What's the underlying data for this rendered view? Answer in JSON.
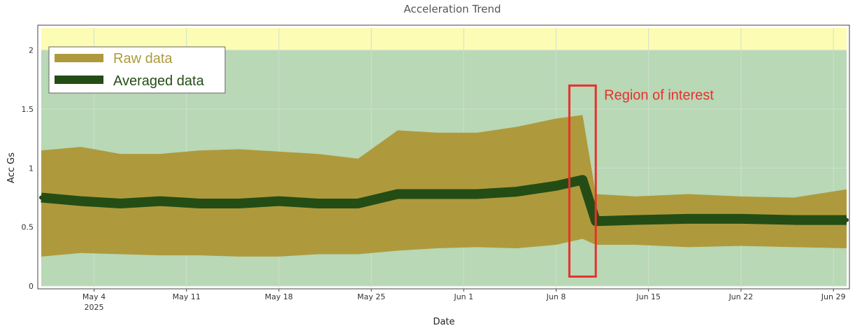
{
  "chart_data": {
    "type": "line",
    "title": "Acceleration Trend",
    "xlabel": "Date",
    "ylabel": "Acc Gs",
    "x_range": [
      "2025-04-30",
      "2025-06-30"
    ],
    "ylim": [
      0,
      2.2
    ],
    "y_ticks": [
      0,
      0.5,
      1,
      1.5,
      2
    ],
    "y_tick_labels": [
      "0",
      "0.5",
      "1",
      "1.5",
      "2"
    ],
    "x_ticks": [
      {
        "date": "2025-05-04",
        "label": "May 4",
        "sublabel": "2025"
      },
      {
        "date": "2025-05-11",
        "label": "May 11",
        "sublabel": ""
      },
      {
        "date": "2025-05-18",
        "label": "May 18",
        "sublabel": ""
      },
      {
        "date": "2025-05-25",
        "label": "May 25",
        "sublabel": ""
      },
      {
        "date": "2025-06-01",
        "label": "Jun 1",
        "sublabel": ""
      },
      {
        "date": "2025-06-08",
        "label": "Jun 8",
        "sublabel": ""
      },
      {
        "date": "2025-06-15",
        "label": "Jun 15",
        "sublabel": ""
      },
      {
        "date": "2025-06-22",
        "label": "Jun 22",
        "sublabel": ""
      },
      {
        "date": "2025-06-29",
        "label": "Jun 29",
        "sublabel": ""
      }
    ],
    "grid": true,
    "zones": [
      {
        "from": 0,
        "to": 2,
        "color": "#b8d8b6"
      },
      {
        "from": 2,
        "to": 2.2,
        "color": "#fdfcb4"
      }
    ],
    "legend_position": "top-left",
    "series": [
      {
        "name": "Raw data",
        "color": "#ae9a3c",
        "style": "band",
        "points": [
          {
            "date": "2025-04-30",
            "low": 0.25,
            "high": 1.15
          },
          {
            "date": "2025-05-03",
            "low": 0.28,
            "high": 1.18
          },
          {
            "date": "2025-05-06",
            "low": 0.27,
            "high": 1.12
          },
          {
            "date": "2025-05-09",
            "low": 0.26,
            "high": 1.12
          },
          {
            "date": "2025-05-12",
            "low": 0.26,
            "high": 1.15
          },
          {
            "date": "2025-05-15",
            "low": 0.25,
            "high": 1.16
          },
          {
            "date": "2025-05-18",
            "low": 0.25,
            "high": 1.14
          },
          {
            "date": "2025-05-21",
            "low": 0.27,
            "high": 1.12
          },
          {
            "date": "2025-05-24",
            "low": 0.27,
            "high": 1.08
          },
          {
            "date": "2025-05-27",
            "low": 0.3,
            "high": 1.32
          },
          {
            "date": "2025-05-30",
            "low": 0.32,
            "high": 1.3
          },
          {
            "date": "2025-06-02",
            "low": 0.33,
            "high": 1.3
          },
          {
            "date": "2025-06-05",
            "low": 0.32,
            "high": 1.35
          },
          {
            "date": "2025-06-08",
            "low": 0.35,
            "high": 1.42
          },
          {
            "date": "2025-06-10",
            "low": 0.4,
            "high": 1.45
          },
          {
            "date": "2025-06-11",
            "low": 0.35,
            "high": 0.78
          },
          {
            "date": "2025-06-14",
            "low": 0.35,
            "high": 0.76
          },
          {
            "date": "2025-06-18",
            "low": 0.33,
            "high": 0.78
          },
          {
            "date": "2025-06-22",
            "low": 0.34,
            "high": 0.76
          },
          {
            "date": "2025-06-26",
            "low": 0.33,
            "high": 0.75
          },
          {
            "date": "2025-06-30",
            "low": 0.32,
            "high": 0.82
          }
        ]
      },
      {
        "name": "Averaged data",
        "color": "#244d15",
        "style": "line",
        "points": [
          {
            "date": "2025-04-30",
            "value": 0.75
          },
          {
            "date": "2025-05-03",
            "value": 0.72
          },
          {
            "date": "2025-05-06",
            "value": 0.7
          },
          {
            "date": "2025-05-09",
            "value": 0.72
          },
          {
            "date": "2025-05-12",
            "value": 0.7
          },
          {
            "date": "2025-05-15",
            "value": 0.7
          },
          {
            "date": "2025-05-18",
            "value": 0.72
          },
          {
            "date": "2025-05-21",
            "value": 0.7
          },
          {
            "date": "2025-05-24",
            "value": 0.7
          },
          {
            "date": "2025-05-27",
            "value": 0.78
          },
          {
            "date": "2025-05-30",
            "value": 0.78
          },
          {
            "date": "2025-06-02",
            "value": 0.78
          },
          {
            "date": "2025-06-05",
            "value": 0.8
          },
          {
            "date": "2025-06-08",
            "value": 0.85
          },
          {
            "date": "2025-06-10",
            "value": 0.9
          },
          {
            "date": "2025-06-11",
            "value": 0.55
          },
          {
            "date": "2025-06-14",
            "value": 0.56
          },
          {
            "date": "2025-06-18",
            "value": 0.57
          },
          {
            "date": "2025-06-22",
            "value": 0.57
          },
          {
            "date": "2025-06-26",
            "value": 0.56
          },
          {
            "date": "2025-06-30",
            "value": 0.56
          }
        ]
      }
    ],
    "annotations": [
      {
        "type": "box",
        "label": "Region of interest",
        "color": "#e8302c",
        "x_from": "2025-06-09",
        "x_to": "2025-06-11",
        "y_from": 0.08,
        "y_to": 1.7
      }
    ]
  }
}
